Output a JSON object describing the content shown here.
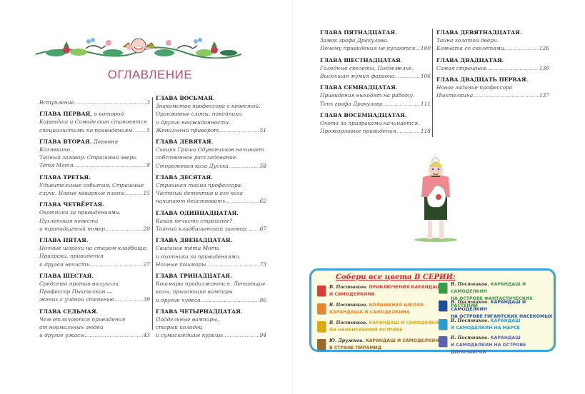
{
  "toc_title": "ОГЛАВЛЕНИЕ",
  "columns": [
    [
      {
        "head": "",
        "lines": [
          "Вступление"
        ],
        "page": "3"
      },
      {
        "head": "ГЛАВА ПЕРВАЯ,",
        "head_rest": " в которой",
        "lines": [
          "Карандаш и Самоделкин становятся",
          "специалистами по привидениям"
        ],
        "page": "5"
      },
      {
        "head": "ГЛАВА ВТОРАЯ.",
        "head_rest": " Деревня Козявкино.",
        "lines": [
          "Тайный заговор. Страшный зверь.",
          "Тётя Мотя"
        ],
        "page": "8"
      },
      {
        "head": "ГЛАВА ТРЕТЬЯ.",
        "lines": [
          "Удивительные события. Страшные",
          "слухи. Новые коварные планы"
        ],
        "page": "15"
      },
      {
        "head": "ГЛАВА ЧЕТВЁРТАЯ.",
        "lines": [
          "Охотники за привидениями.",
          "Пухленькая невеста",
          "и тринадцатый номер"
        ],
        "page": "20"
      },
      {
        "head": "ГЛАВА ПЯТАЯ.",
        "lines": [
          "Ночные шорохи на старом кладбище.",
          "Призраки, привидения",
          "и другая нечисть"
        ],
        "page": "27"
      },
      {
        "head": "ГЛАВА ШЕСТАЯ.",
        "lines": [
          "Средство против выхухоли.",
          "Профессор Пыхтелкин —",
          "жених с учёной степенью"
        ],
        "page": "39"
      },
      {
        "head": "ГЛАВА СЕДЬМАЯ.",
        "lines": [
          "Чем отличаются привидения",
          "от нормальных людей",
          "и другие ужасы"
        ],
        "page": "43"
      }
    ],
    [
      {
        "head": "ГЛАВА ВОСЬМАЯ.",
        "lines": [
          "Знакомство профессора с невестой.",
          "Оранжевые слоны, покойники",
          "и другие неожиданности.",
          "Женильный приворот"
        ],
        "page": "51"
      },
      {
        "head": "ГЛАВА ДЕВЯТАЯ.",
        "lines": [
          "Сыщик Гриша Одуванчиков начинает",
          "собственное расследование.",
          "Сторожевая коза Дуська"
        ],
        "page": "58"
      },
      {
        "head": "ГЛАВА ДЕСЯТАЯ.",
        "lines": [
          "Страшная тайна профессора.",
          "Частный детектив и его коза",
          "начинают действовать"
        ],
        "page": "62"
      },
      {
        "head": "ГЛАВА ОДИННАДЦАТАЯ.",
        "lines": [
          "Какая нечисть страшнее?",
          "Тайный кладбищенский заговор"
        ],
        "page": "67"
      },
      {
        "head": "ГЛАВА ДВЕНАДЦАТАЯ.",
        "lines": [
          "Свидание тёти Моти",
          "и охотника за привидениями.",
          "Ночные кошмары"
        ],
        "page": "73"
      },
      {
        "head": "ГЛАВА ТРИНАДЦАТАЯ.",
        "lines": [
          "Кошмары продолжаются. Летающие",
          "козы, прыгающие вампиры",
          "и другие чудеса"
        ],
        "page": "86"
      },
      {
        "head": "ГЛАВА ЧЕТЫРНАДЦАТАЯ.",
        "lines": [
          "Поддельные вампиры,",
          "старый колодец",
          "и сумасшедшие курицы"
        ],
        "page": "94"
      }
    ],
    [
      {
        "head": "ГЛАВА ПЯТНАДЦАТАЯ.",
        "lines": [
          "Замок графа Дракулова.",
          "Почему привидения не кусаются"
        ],
        "page": "100"
      },
      {
        "head": "ГЛАВА ШЕСТНАДЦАТАЯ.",
        "lines": [
          "Голодные скелеты. Подземелье.",
          "Высохшая мумия фараона"
        ],
        "page": "106"
      },
      {
        "head": "ГЛАВА СЕМНАДЦАТАЯ.",
        "lines": [
          "Привидения выходят на работу.",
          "Тень графа Дракулова"
        ],
        "page": "111"
      },
      {
        "head": "ГЛАВА ВОСЕМНАДЦАТАЯ.",
        "lines": [
          "Охота за призраками начинается.",
          "Прожорливые привидения"
        ],
        "page": "118"
      }
    ],
    [
      {
        "head": "ГЛАВА ДЕВЯТНАДЦАТАЯ.",
        "lines": [
          "Тайна золотой двери.",
          "Комната со скелетами"
        ],
        "page": "126"
      },
      {
        "head": "ГЛАВА ДВАДЦАТАЯ.",
        "lines": [
          "Самая страшная"
        ],
        "page": "130"
      },
      {
        "head": "ГЛАВА ДВАДЦАТЬ ПЕРВАЯ.",
        "lines": [
          "Новое задание профессора",
          "Пыхтелкина"
        ],
        "page": "137"
      }
    ]
  ],
  "series": {
    "title": "Собери все цвета В СЕРИИ:",
    "books": [
      {
        "author": "В. Постников.",
        "title1": " ПРИКЛЮЧЕНИЯ КАРАНДАША",
        "title2": "И САМОДЕЛКИНА",
        "color": "#d4423a"
      },
      {
        "author": "В. Постников.",
        "title1": " ВОЛШЕБНАЯ ШКОЛА",
        "title2": "КАРАНДАША И САМОДЕЛКИНА",
        "color": "#e8862c"
      },
      {
        "author": "В. Постников.",
        "title1": " КАРАНДАШ И САМОДЕЛКИН",
        "title2": "НА НЕОБИТАЕМОМ ОСТРОВЕ",
        "color": "#deaa10"
      },
      {
        "author": "Ю. Дружков.",
        "title1": " КАРАНДАШ И САМОДЕЛКИН",
        "title2": "В СТРАНЕ ПИРАМИД",
        "color": "#9a6a2c"
      },
      {
        "author": "В. Постников.",
        "title1": " КАРАНДАШ И САМОДЕЛКИН",
        "title2": "НА ОСТРОВЕ ФАНТАСТИЧЕСКИХ РАСТЕНИЙ",
        "color": "#3a9a48"
      },
      {
        "author": "В. Постников.",
        "title1": " КАРАНДАШ И САМОДЕЛКИН",
        "title2": "НА ОСТРОВЕ ГИГАНТСКИХ НАСЕКОМЫХ",
        "color": "#1f4f98"
      },
      {
        "author": "В. Постников.",
        "title1": " КАРАНДАШ",
        "title2": "И САМОДЕЛКИН НА МАРСЕ",
        "color": "#2a9ad8"
      },
      {
        "author": "В. Постников.",
        "title1": " КАРАНДАШ",
        "title2": "И САМОДЕЛКИН НА ОСТРОВЕ ДИНОЗАВРОВ",
        "color": "#5a62b0"
      }
    ]
  }
}
